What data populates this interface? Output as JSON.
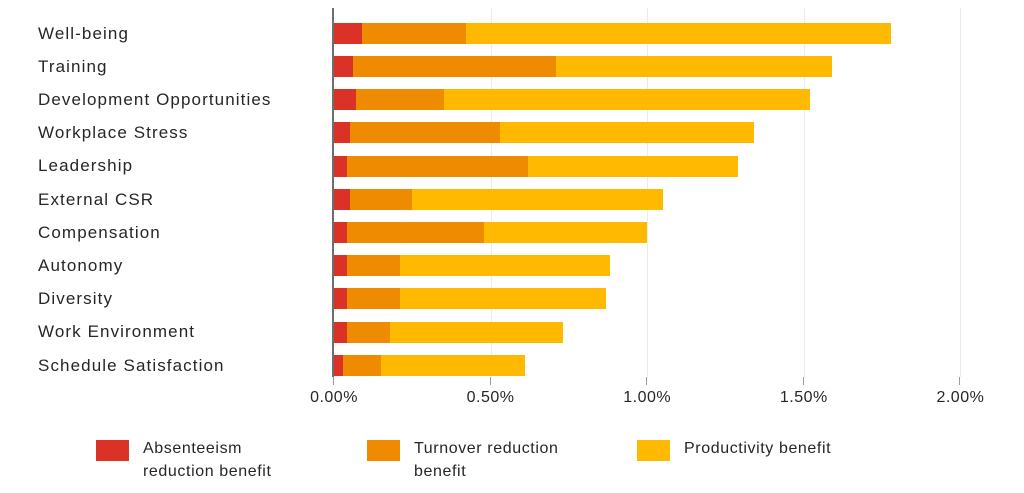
{
  "chart_data": {
    "type": "bar",
    "orientation": "horizontal",
    "stacked": true,
    "title": "",
    "xlabel": "",
    "ylabel": "",
    "grid": "vertical-only",
    "legend_position": "bottom",
    "categories": [
      "Well-being",
      "Training",
      "Development Opportunities",
      "Workplace Stress",
      "Leadership",
      "External CSR",
      "Compensation",
      "Autonomy",
      "Diversity",
      "Work Environment",
      "Schedule Satisfaction"
    ],
    "series": [
      {
        "id": "absenteeism-reduction-benefit",
        "name": "Absenteeism reduction benefit",
        "legend_label": "Absenteeism\nreduction benefit",
        "color": "#DB3227",
        "values": [
          0.09,
          0.06,
          0.07,
          0.05,
          0.04,
          0.05,
          0.04,
          0.04,
          0.04,
          0.04,
          0.03
        ]
      },
      {
        "id": "turnover-reduction-benefit",
        "name": "Turnover reduction benefit",
        "legend_label": "Turnover reduction\nbenefit",
        "color": "#EE8B00",
        "values": [
          0.33,
          0.65,
          0.28,
          0.48,
          0.58,
          0.2,
          0.44,
          0.17,
          0.17,
          0.14,
          0.12
        ]
      },
      {
        "id": "productivity-benefit",
        "name": "Productivity benefit",
        "legend_label": "Productivity benefit",
        "color": "#FFB900",
        "values": [
          1.36,
          0.88,
          1.17,
          0.81,
          0.67,
          0.8,
          0.52,
          0.67,
          0.66,
          0.55,
          0.46
        ]
      }
    ],
    "totals": [
      1.78,
      1.59,
      1.52,
      1.34,
      1.29,
      1.05,
      1.0,
      0.88,
      0.87,
      0.73,
      0.61
    ],
    "x_axis": {
      "unit": "%",
      "min": 0,
      "max": 2.0,
      "ticks": [
        {
          "label": "0.00%",
          "value": 0
        },
        {
          "label": "0.50%",
          "value": 0.5
        },
        {
          "label": "1.00%",
          "value": 1.0
        },
        {
          "label": "1.50%",
          "value": 1.5
        },
        {
          "label": "2.00%",
          "value": 2.0
        }
      ]
    }
  },
  "colors": {
    "background": "#FFFFFF",
    "axis_line": "#6E6E6E",
    "gridline": "#EBEBEB",
    "tick": "#9B9B9B",
    "text": "#262626"
  }
}
